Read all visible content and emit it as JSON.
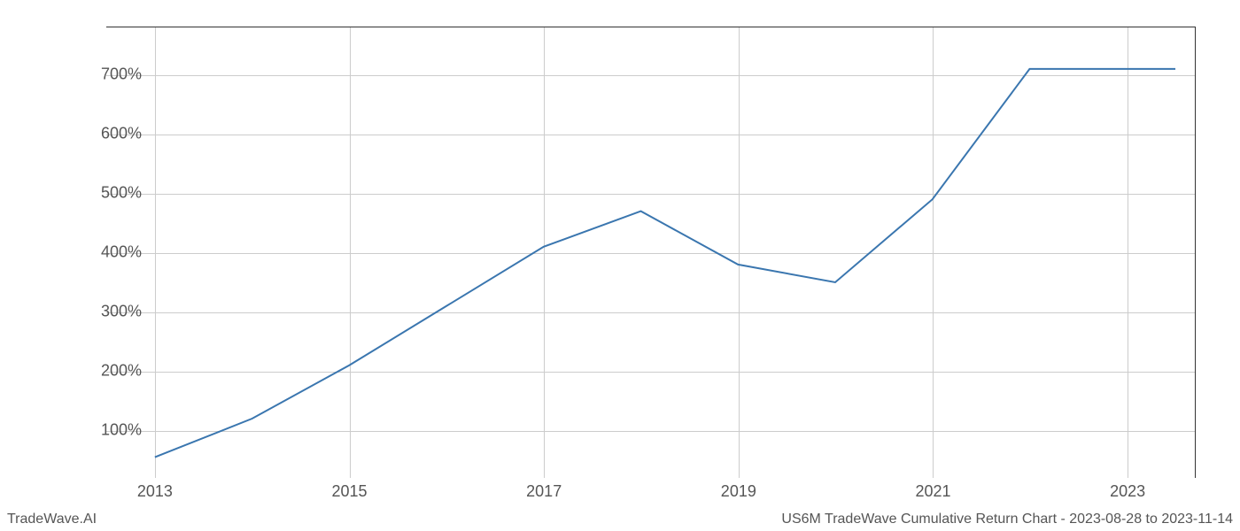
{
  "chart": {
    "type": "line",
    "x_values": [
      2013,
      2014,
      2015,
      2016,
      2017,
      2018,
      2019,
      2020,
      2021,
      2022,
      2023,
      2023.5
    ],
    "y_values": [
      55,
      120,
      210,
      310,
      410,
      470,
      380,
      350,
      490,
      710,
      710,
      710
    ],
    "line_color": "#3a76af",
    "line_width": 2,
    "xlim": [
      2012.5,
      2023.7
    ],
    "ylim": [
      20,
      780
    ],
    "x_ticks": [
      2013,
      2015,
      2017,
      2019,
      2021,
      2023
    ],
    "x_tick_labels": [
      "2013",
      "2015",
      "2017",
      "2019",
      "2021",
      "2023"
    ],
    "y_ticks": [
      100,
      200,
      300,
      400,
      500,
      600,
      700
    ],
    "y_tick_labels": [
      "100%",
      "200%",
      "300%",
      "400%",
      "500%",
      "600%",
      "700%"
    ],
    "grid_color": "#cccccc",
    "background_color": "#ffffff",
    "tick_label_color": "#555555",
    "tick_label_fontsize": 18
  },
  "footer": {
    "left": "TradeWave.AI",
    "right": "US6M TradeWave Cumulative Return Chart - 2023-08-28 to 2023-11-14"
  }
}
